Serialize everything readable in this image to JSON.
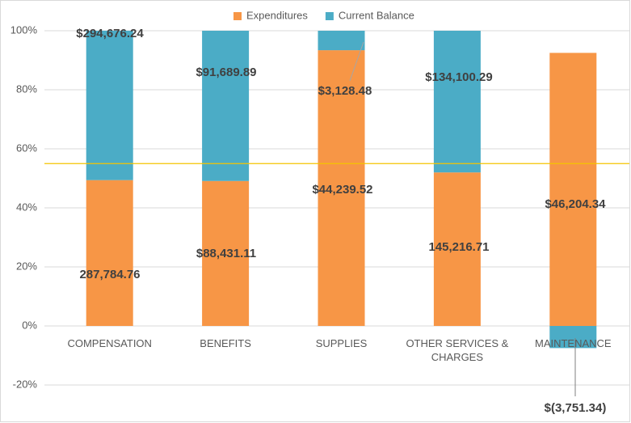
{
  "chart_data": {
    "type": "stacked_bar_percent",
    "categories": [
      "COMPENSATION",
      "BENEFITS",
      "SUPPLIES",
      "OTHER SERVICES & CHARGES",
      "MAINTENANCE"
    ],
    "series": [
      {
        "name": "Expenditures",
        "color": "#f79646",
        "values": [
          49.4,
          49.1,
          93.4,
          52.0,
          92.5
        ],
        "data_labels": [
          "287,784.76",
          "$88,431.11",
          "$44,239.52",
          "145,216.71",
          "$46,204.34"
        ]
      },
      {
        "name": "Current Balance",
        "color": "#4bacc6",
        "values": [
          50.6,
          50.9,
          6.6,
          48.0,
          -7.5
        ],
        "data_labels": [
          "$294,676.24",
          "$91,689.89",
          "$3,128.48",
          "$134,100.29",
          "$(3,751.34)"
        ]
      }
    ],
    "ylim": [
      -30,
      100
    ],
    "yticks": [
      {
        "value": -20,
        "label": "-20%"
      },
      {
        "value": 0,
        "label": "0%"
      },
      {
        "value": 20,
        "label": "20%"
      },
      {
        "value": 40,
        "label": "40%"
      },
      {
        "value": 60,
        "label": "60%"
      },
      {
        "value": 80,
        "label": "80%"
      },
      {
        "value": 100,
        "label": "100%"
      }
    ],
    "grid": true,
    "legend": "top",
    "reference_line": {
      "value": 55,
      "color": "#f5c400"
    }
  }
}
